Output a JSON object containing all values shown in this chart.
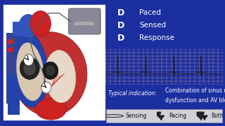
{
  "bg_color": "#1c2fa0",
  "title_letters": [
    "D",
    "D",
    "D"
  ],
  "title_labels": [
    "Paced",
    "Sensed",
    "Response"
  ],
  "title_color": "#ffffff",
  "letter_fontsize": 9,
  "label_fontsize": 7.5,
  "indication_label": "Typical indication:",
  "indication_color": "#ffffff",
  "indication_fontsize": 5.8,
  "ecg_bg": "#f2d8c8",
  "ecg_grid_color": "#d9a898",
  "heart_panel_bg": "#1c2fa0",
  "legend_bg": "#d0d0d8",
  "legend_fontsize": 5.5
}
